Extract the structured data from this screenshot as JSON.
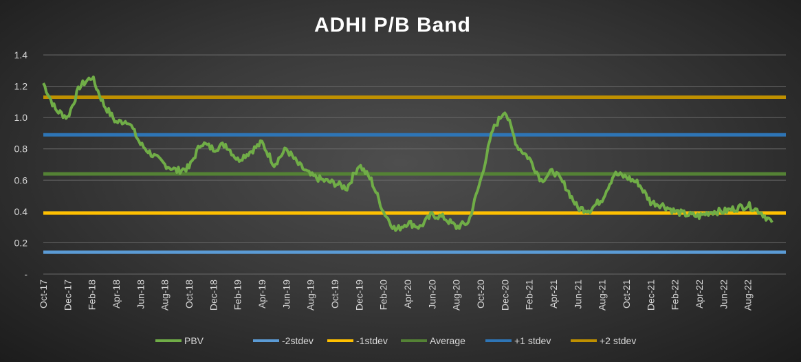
{
  "chart_data": {
    "type": "line",
    "title": "ADHI P/B Band",
    "xlabel": "",
    "ylabel": "",
    "ylim": [
      0,
      1.4
    ],
    "y_ticks": [
      "-",
      "0.2",
      "0.4",
      "0.6",
      "0.8",
      "1.0",
      "1.2",
      "1.4"
    ],
    "x_tick_labels": [
      "Oct-17",
      "Dec-17",
      "Feb-18",
      "Apr-18",
      "Jun-18",
      "Aug-18",
      "Oct-18",
      "Dec-18",
      "Feb-19",
      "Apr-19",
      "Jun-19",
      "Aug-19",
      "Oct-19",
      "Dec-19",
      "Feb-20",
      "Apr-20",
      "Jun-20",
      "Aug-20",
      "Oct-20",
      "Dec-20",
      "Feb-21",
      "Apr-21",
      "Jun-21",
      "Aug-21",
      "Oct-21",
      "Dec-21",
      "Feb-22",
      "Apr-22",
      "Jun-22",
      "Aug-22"
    ],
    "grid": true,
    "legend_position": "bottom",
    "series": [
      {
        "name": "PBV",
        "color": "#70ad47",
        "x": [
          "Oct-17",
          "Nov-17",
          "Dec-17",
          "Jan-18",
          "Feb-18",
          "Mar-18",
          "Apr-18",
          "May-18",
          "Jun-18",
          "Jul-18",
          "Aug-18",
          "Sep-18",
          "Oct-18",
          "Nov-18",
          "Dec-18",
          "Jan-19",
          "Feb-19",
          "Mar-19",
          "Apr-19",
          "May-19",
          "Jun-19",
          "Jul-19",
          "Aug-19",
          "Sep-19",
          "Oct-19",
          "Nov-19",
          "Dec-19",
          "Jan-20",
          "Feb-20",
          "Mar-20",
          "Apr-20",
          "May-20",
          "Jun-20",
          "Jul-20",
          "Aug-20",
          "Sep-20",
          "Oct-20",
          "Nov-20",
          "Dec-20",
          "Jan-21",
          "Feb-21",
          "Mar-21",
          "Apr-21",
          "May-21",
          "Jun-21",
          "Jul-21",
          "Aug-21",
          "Sep-21",
          "Oct-21",
          "Nov-21",
          "Dec-21",
          "Jan-22",
          "Feb-22",
          "Mar-22",
          "Apr-22",
          "May-22",
          "Jun-22",
          "Jul-22",
          "Aug-22",
          "Sep-22",
          "Oct-22"
        ],
        "values": [
          1.22,
          1.05,
          1.0,
          1.2,
          1.26,
          1.08,
          0.97,
          0.98,
          0.83,
          0.76,
          0.7,
          0.66,
          0.68,
          0.84,
          0.8,
          0.83,
          0.73,
          0.78,
          0.84,
          0.7,
          0.8,
          0.7,
          0.63,
          0.6,
          0.58,
          0.55,
          0.7,
          0.6,
          0.4,
          0.28,
          0.33,
          0.3,
          0.38,
          0.36,
          0.3,
          0.33,
          0.6,
          0.92,
          1.05,
          0.82,
          0.74,
          0.6,
          0.66,
          0.56,
          0.42,
          0.41,
          0.48,
          0.64,
          0.62,
          0.58,
          0.46,
          0.44,
          0.4,
          0.38,
          0.37,
          0.4,
          0.4,
          0.42,
          0.44,
          0.4,
          0.33
        ]
      },
      {
        "name": "-2stdev",
        "color": "#5b9bd5",
        "values": [
          0.14
        ]
      },
      {
        "name": "-1stdev",
        "color": "#ffc000",
        "values": [
          0.39
        ]
      },
      {
        "name": "Average",
        "color": "#548235",
        "values": [
          0.64
        ]
      },
      {
        "name": "+1 stdev",
        "color": "#2e75b6",
        "values": [
          0.89
        ]
      },
      {
        "name": "+2 stdev",
        "color": "#bf9000",
        "values": [
          1.13
        ]
      }
    ]
  }
}
